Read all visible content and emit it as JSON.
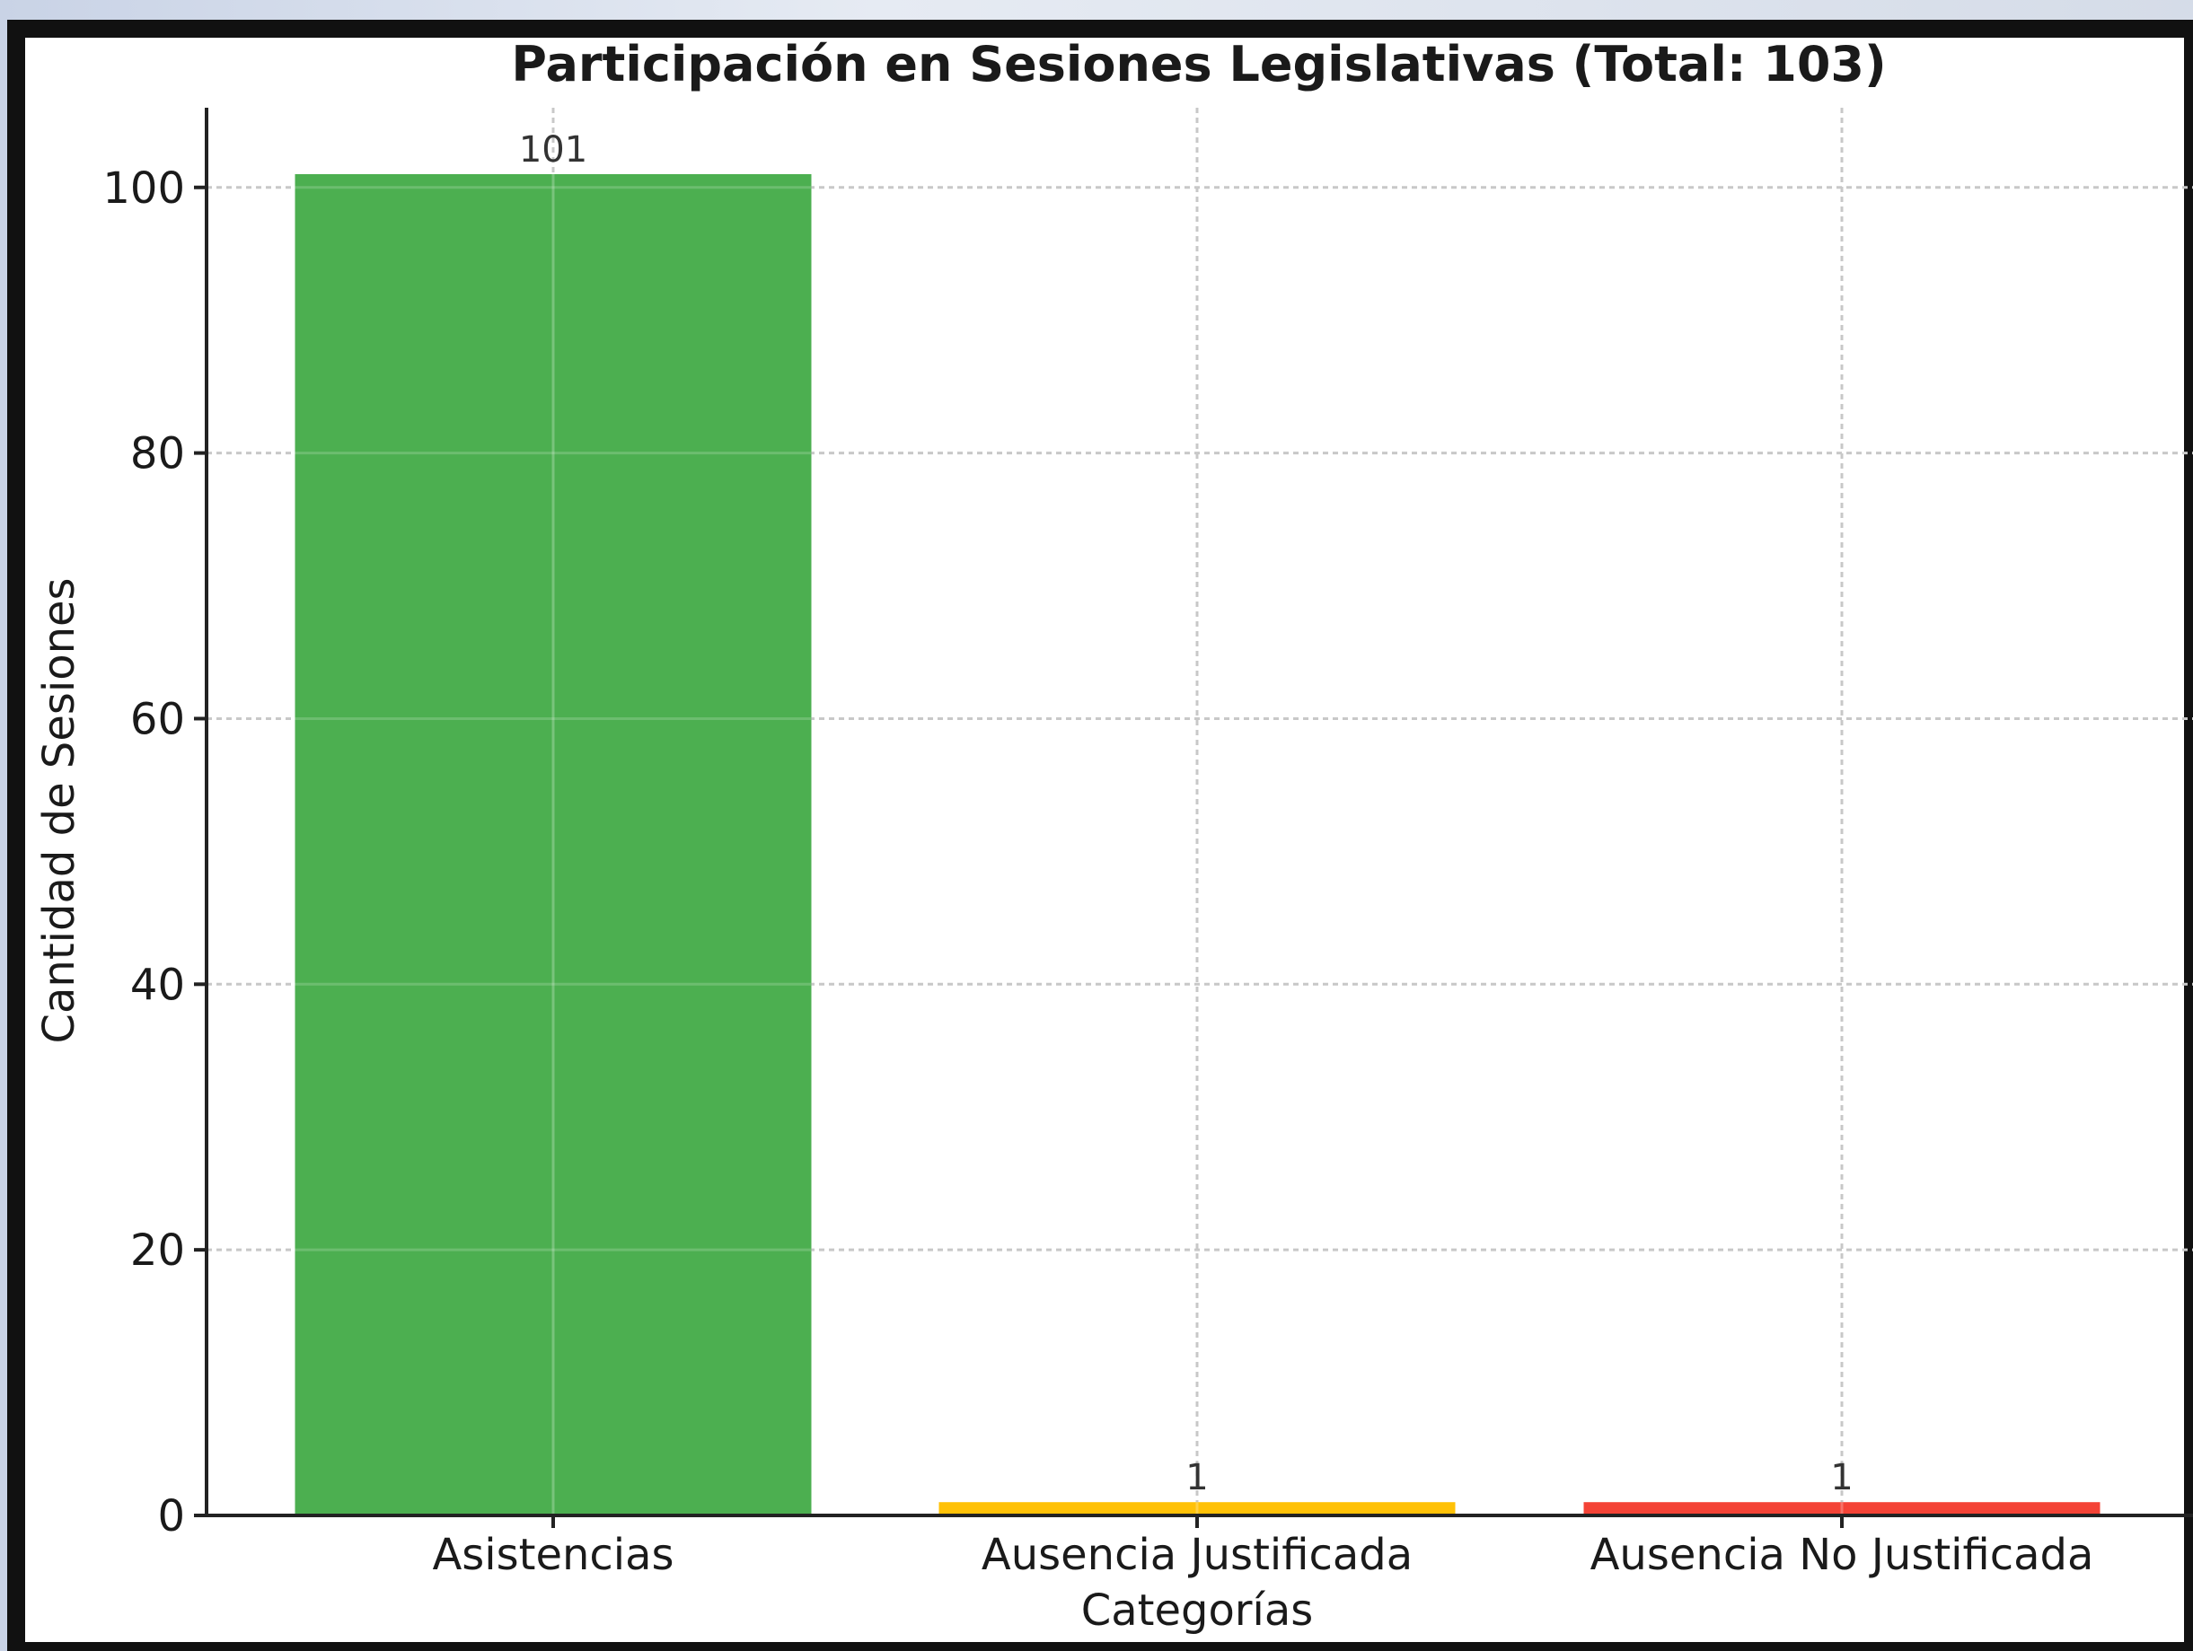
{
  "chart_data": {
    "type": "bar",
    "title": "Participación en Sesiones Legislativas (Total: 103)",
    "xlabel": "Categorías",
    "ylabel": "Cantidad de Sesiones",
    "categories": [
      "Asistencias",
      "Ausencia Justificada",
      "Ausencia No Justificada"
    ],
    "values": [
      101,
      1,
      1
    ],
    "data_labels": [
      "101",
      "1",
      "1"
    ],
    "colors": [
      "#4caf50",
      "#ffc107",
      "#f44336"
    ],
    "ylim": [
      0,
      106
    ],
    "yticks": [
      0,
      20,
      40,
      60,
      80,
      100
    ],
    "ytick_labels": [
      "0",
      "20",
      "40",
      "60",
      "80",
      "100"
    ],
    "grid": true,
    "legend": "none"
  }
}
